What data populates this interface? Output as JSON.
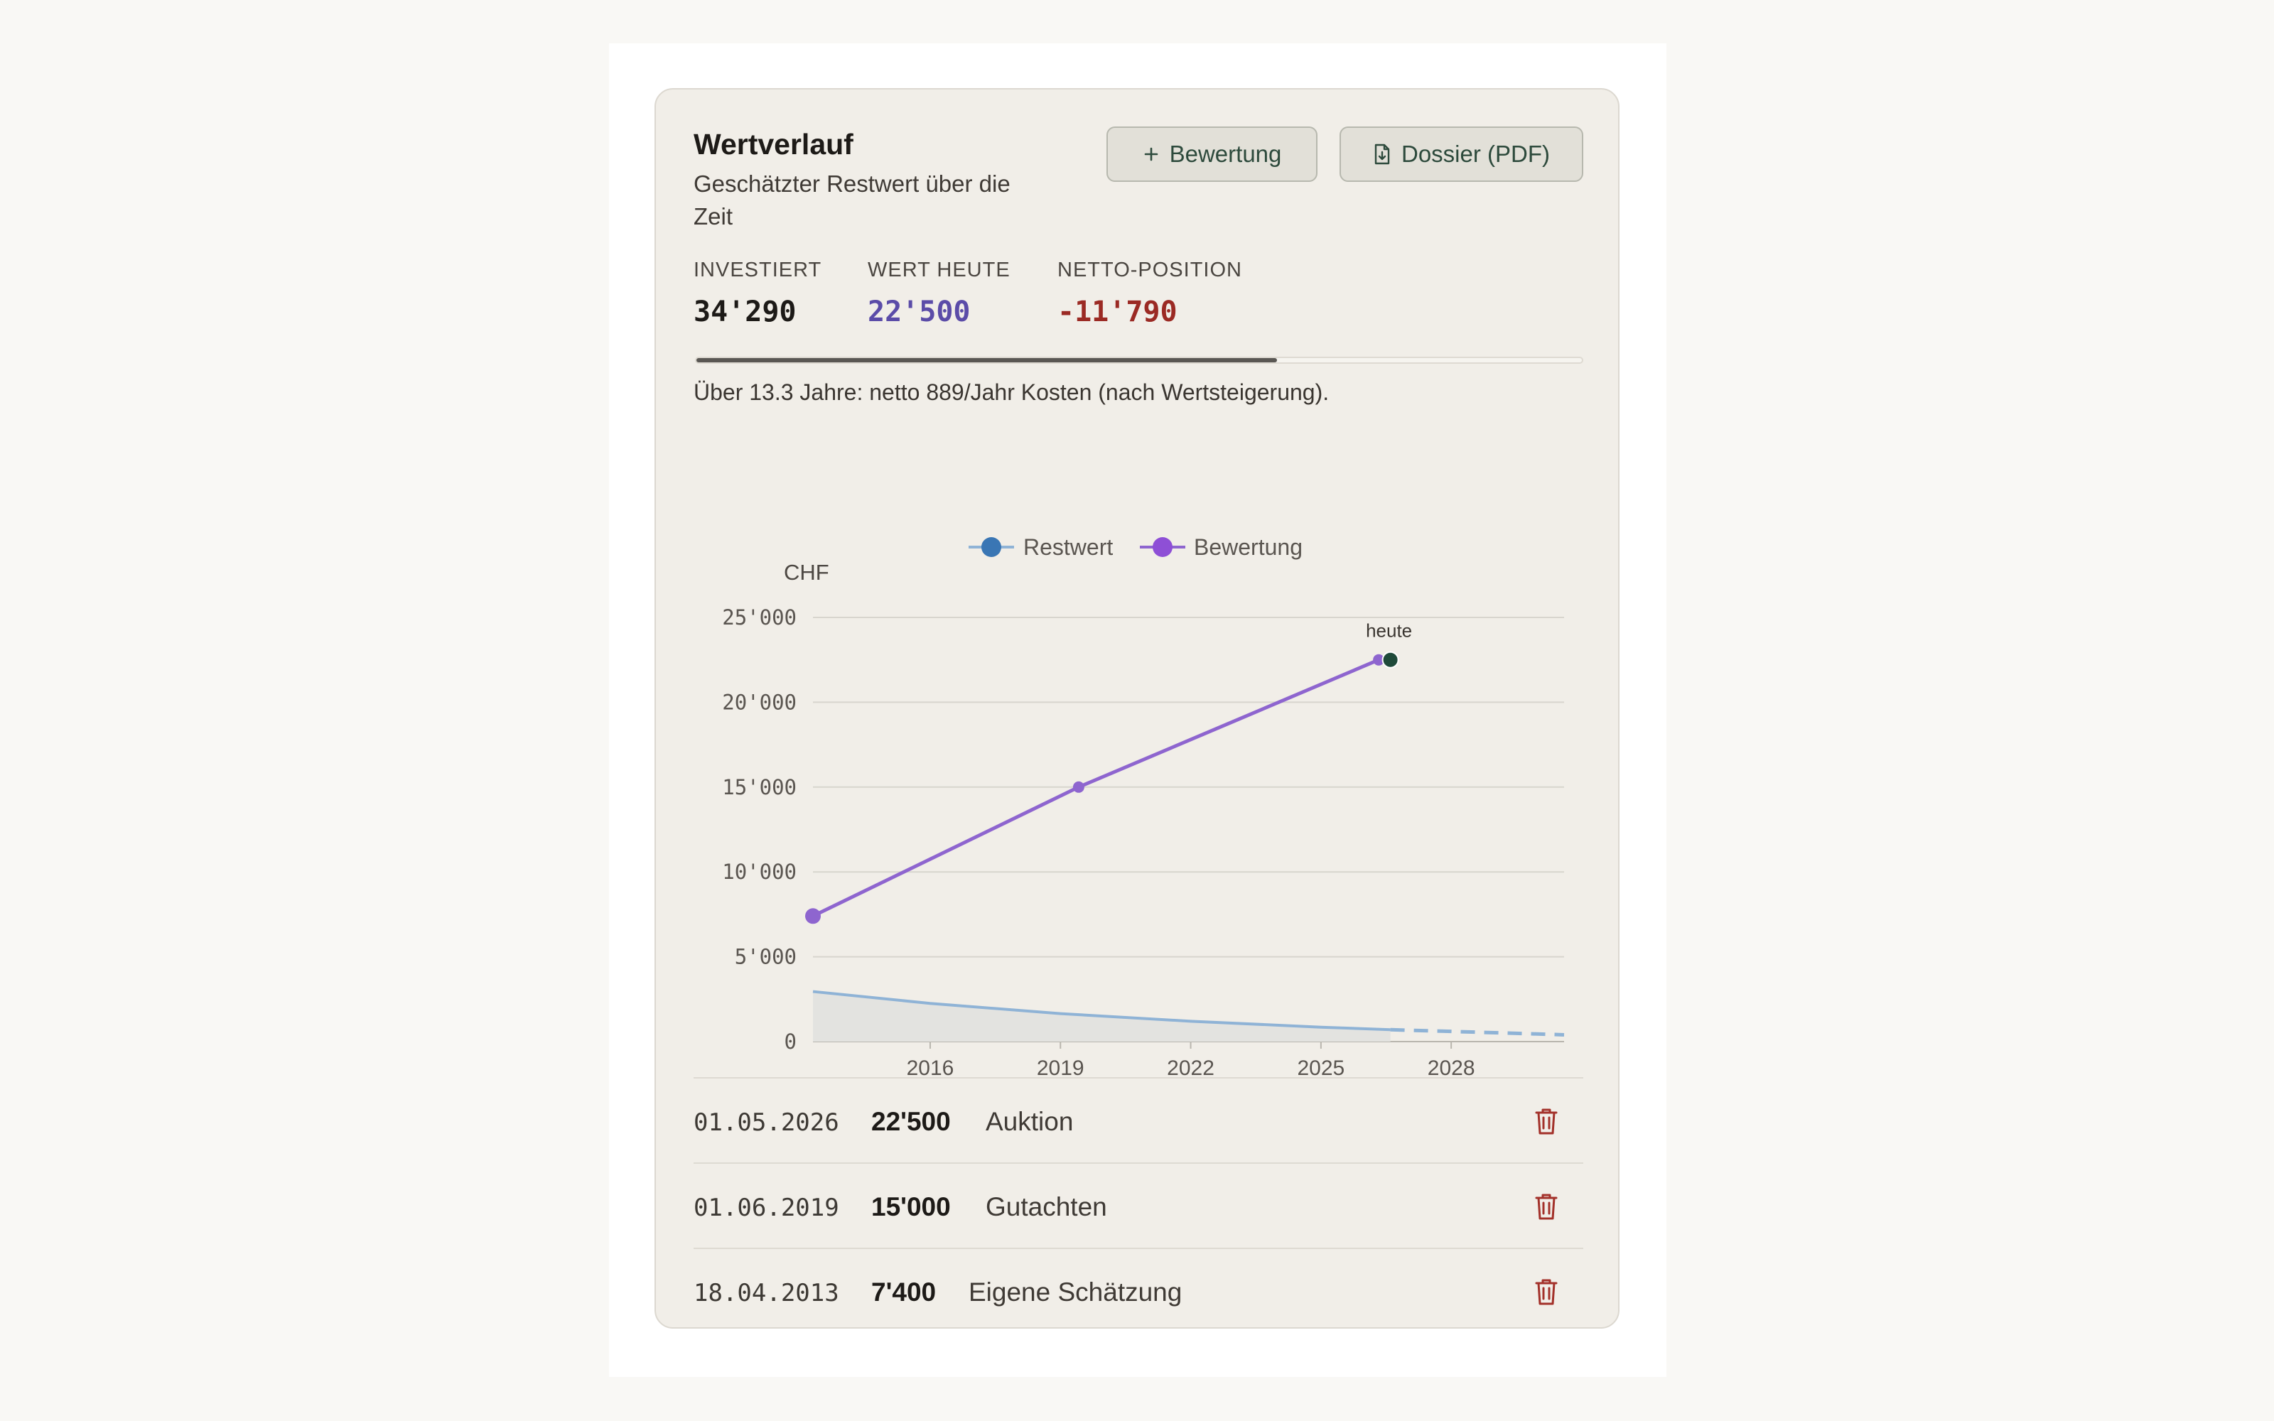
{
  "card": {
    "title": "Wertverlauf",
    "subtitle": "Geschätzter Restwert über die Zeit",
    "buttons": {
      "add_label": "Bewertung",
      "pdf_label": "Dossier (PDF)"
    }
  },
  "stats": [
    {
      "label": "INVESTIERT",
      "value": "34'290",
      "color": "#1d1a17"
    },
    {
      "label": "WERT HEUTE",
      "value": "22'500",
      "color": "#5b4ca8"
    },
    {
      "label": "NETTO-POSITION",
      "value": "-11'790",
      "color": "#9b2a24"
    }
  ],
  "progress": {
    "fraction": 0.656
  },
  "summary": "Über 13.3 Jahre: netto 889/Jahr Kosten (nach Wertsteigerung).",
  "chart_data": {
    "type": "line",
    "ylabel": "CHF",
    "ylim": [
      0,
      25000
    ],
    "xlim": [
      2013.3,
      2030.6
    ],
    "y_ticks": [
      {
        "value": 25000,
        "label": "25'000"
      },
      {
        "value": 20000,
        "label": "20'000"
      },
      {
        "value": 15000,
        "label": "15'000"
      },
      {
        "value": 10000,
        "label": "10'000"
      },
      {
        "value": 5000,
        "label": "5'000"
      },
      {
        "value": 0,
        "label": "0"
      }
    ],
    "x_ticks": [
      {
        "value": 2016,
        "label": "2016"
      },
      {
        "value": 2019,
        "label": "2019"
      },
      {
        "value": 2022,
        "label": "2022"
      },
      {
        "value": 2025,
        "label": "2025"
      },
      {
        "value": 2028,
        "label": "2028"
      }
    ],
    "grid": true,
    "legend_placement": "top-center",
    "series": [
      {
        "name": "Restwert",
        "color": "#8fb3d6",
        "legend_color": "#3a76b4",
        "x": [
          2013.3,
          2016.0,
          2019.0,
          2022.0,
          2025.0,
          2026.6
        ],
        "y": [
          2950,
          2250,
          1650,
          1200,
          850,
          700
        ],
        "forecast_x": [
          2026.6,
          2028.0,
          2030.6
        ],
        "forecast_y": [
          700,
          600,
          400
        ]
      },
      {
        "name": "Bewertung",
        "color": "#8e65cf",
        "legend_color": "#8e4fd6",
        "x": [
          2013.3,
          2019.42,
          2026.33
        ],
        "y": [
          7400,
          15000,
          22500
        ]
      }
    ],
    "annotations": [
      {
        "x": 2026.6,
        "y": 22500,
        "text": "heute",
        "marker_color": "#1f4a3a"
      }
    ]
  },
  "valuations": [
    {
      "date": "01.05.2026",
      "amount": "22'500",
      "note": "Auktion"
    },
    {
      "date": "01.06.2019",
      "amount": "15'000",
      "note": "Gutachten"
    },
    {
      "date": "18.04.2013",
      "amount": "7'400",
      "note": "Eigene Schätzung"
    }
  ],
  "icons": {
    "add": "plus-icon",
    "pdf": "file-download-icon",
    "delete": "trash-icon"
  }
}
